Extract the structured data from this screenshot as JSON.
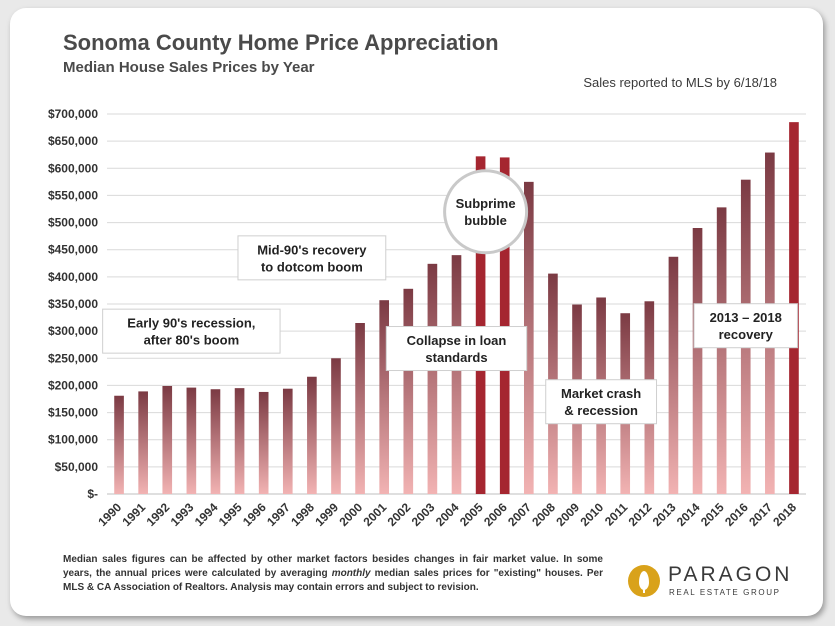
{
  "header": {
    "title": "Sonoma County Home Price Appreciation",
    "subtitle": "Median House Sales Prices by Year",
    "sales_note": "Sales reported to MLS by 6/18/18"
  },
  "footnote": {
    "part1": "Median sales figures can be affected by other market factors besides changes in fair market value. In some years, the annual prices were calculated by averaging ",
    "emphasis": "monthly",
    "part2": " median sales prices for \"existing\" houses. Per MLS & CA Association of Realtors. Analysis may contain errors and subject to revision."
  },
  "logo": {
    "name": "PARAGON",
    "tagline": "REAL ESTATE GROUP",
    "icon": "acorn-icon"
  },
  "colors": {
    "bar_top": "#7b3a43",
    "bar_bottom": "#f2b3b3",
    "highlight": "#a52630",
    "gridline": "#d9d9d9",
    "text": "#333333"
  },
  "chart_data": {
    "type": "bar",
    "title": "Sonoma County Home Price Appreciation",
    "subtitle": "Median House Sales Prices by Year",
    "xlabel": "",
    "ylabel": "",
    "ylim": [
      0,
      700000
    ],
    "ytick_step": 50000,
    "yticks": [
      "$-",
      "$50,000",
      "$100,000",
      "$150,000",
      "$200,000",
      "$250,000",
      "$300,000",
      "$350,000",
      "$400,000",
      "$450,000",
      "$500,000",
      "$550,000",
      "$600,000",
      "$650,000",
      "$700,000"
    ],
    "grid": true,
    "categories": [
      "1990",
      "1991",
      "1992",
      "1993",
      "1994",
      "1995",
      "1996",
      "1997",
      "1998",
      "1999",
      "2000",
      "2001",
      "2002",
      "2003",
      "2004",
      "2005",
      "2006",
      "2007",
      "2008",
      "2009",
      "2010",
      "2011",
      "2012",
      "2013",
      "2014",
      "2015",
      "2016",
      "2017",
      "2018"
    ],
    "values": [
      181000,
      189000,
      199000,
      196000,
      193000,
      195000,
      188000,
      194000,
      216000,
      250000,
      315000,
      357000,
      378000,
      424000,
      440000,
      622000,
      620000,
      575000,
      406000,
      349000,
      362000,
      333000,
      355000,
      437000,
      490000,
      528000,
      579000,
      629000,
      685000
    ],
    "highlighted": [
      "2005",
      "2006",
      "2018"
    ],
    "annotations": [
      {
        "lines": [
          "Early 90's recession,",
          "after 80's boom"
        ],
        "year": "1993",
        "value": 300000
      },
      {
        "lines": [
          "Mid-90's recovery",
          "to dotcom boom"
        ],
        "year": "1998",
        "value": 435000
      },
      {
        "lines": [
          "Subprime",
          "bubble"
        ],
        "year": "2005",
        "value": 520000,
        "shape": "circle"
      },
      {
        "lines": [
          "Collapse in loan",
          "standards"
        ],
        "year": "2004",
        "value": 268000
      },
      {
        "lines": [
          "Market crash",
          "& recession"
        ],
        "year": "2010",
        "value": 170000
      },
      {
        "lines": [
          "2013 – 2018",
          "recovery"
        ],
        "year": "2016",
        "value": 310000
      }
    ]
  }
}
